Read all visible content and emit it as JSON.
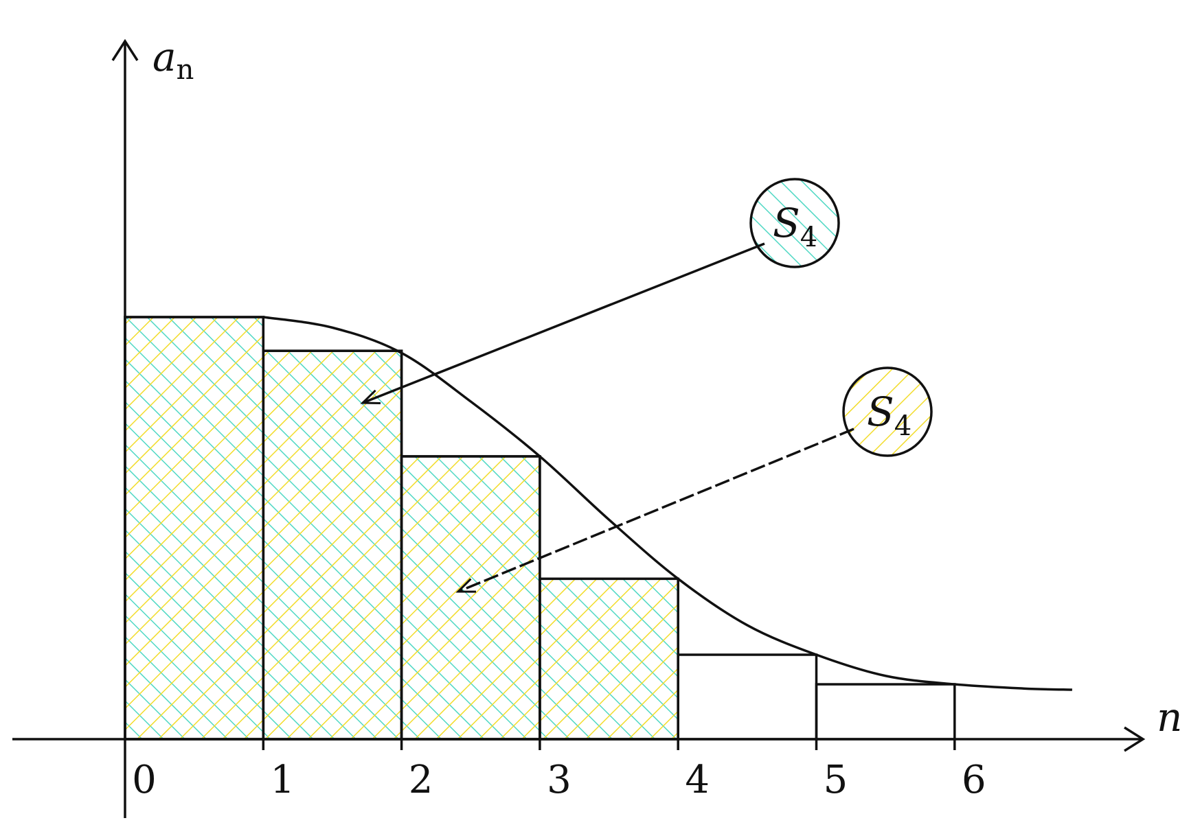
{
  "axes": {
    "y_label": "a",
    "y_label_sub": "n",
    "x_label": "n",
    "ticks": [
      "0",
      "1",
      "2",
      "3",
      "4",
      "5",
      "6"
    ]
  },
  "legend": [
    {
      "symbol": "S",
      "sub": "4",
      "hatch": "green",
      "description": "upper rectangles"
    },
    {
      "symbol": "S",
      "sub": "4",
      "hatch": "yellow",
      "description": "lower rectangles"
    }
  ],
  "colors": {
    "green_hatch": "#4fd8c4",
    "yellow_hatch": "#f2dc2a",
    "stroke": "#111111"
  },
  "upper_rectangles": [
    {
      "n": 1,
      "a": 1.0
    },
    {
      "n": 2,
      "a": 0.92
    },
    {
      "n": 3,
      "a": 0.67
    },
    {
      "n": 4,
      "a": 0.38
    }
  ],
  "lower_rectangles": [
    {
      "n": 0,
      "a": 1.0
    },
    {
      "n": 1,
      "a": 0.92
    },
    {
      "n": 2,
      "a": 0.67
    },
    {
      "n": 3,
      "a": 0.38
    },
    {
      "n": 4,
      "a": 0.2
    },
    {
      "n": 5,
      "a": 0.13
    }
  ],
  "curve": [
    [
      1.0,
      1.0
    ],
    [
      1.5,
      0.975
    ],
    [
      2.0,
      0.915
    ],
    [
      2.5,
      0.8
    ],
    [
      3.0,
      0.67
    ],
    [
      3.5,
      0.52
    ],
    [
      4.0,
      0.38
    ],
    [
      4.5,
      0.27
    ],
    [
      5.0,
      0.2
    ],
    [
      5.5,
      0.15
    ],
    [
      6.0,
      0.13
    ],
    [
      6.5,
      0.12
    ],
    [
      6.85,
      0.117
    ]
  ]
}
